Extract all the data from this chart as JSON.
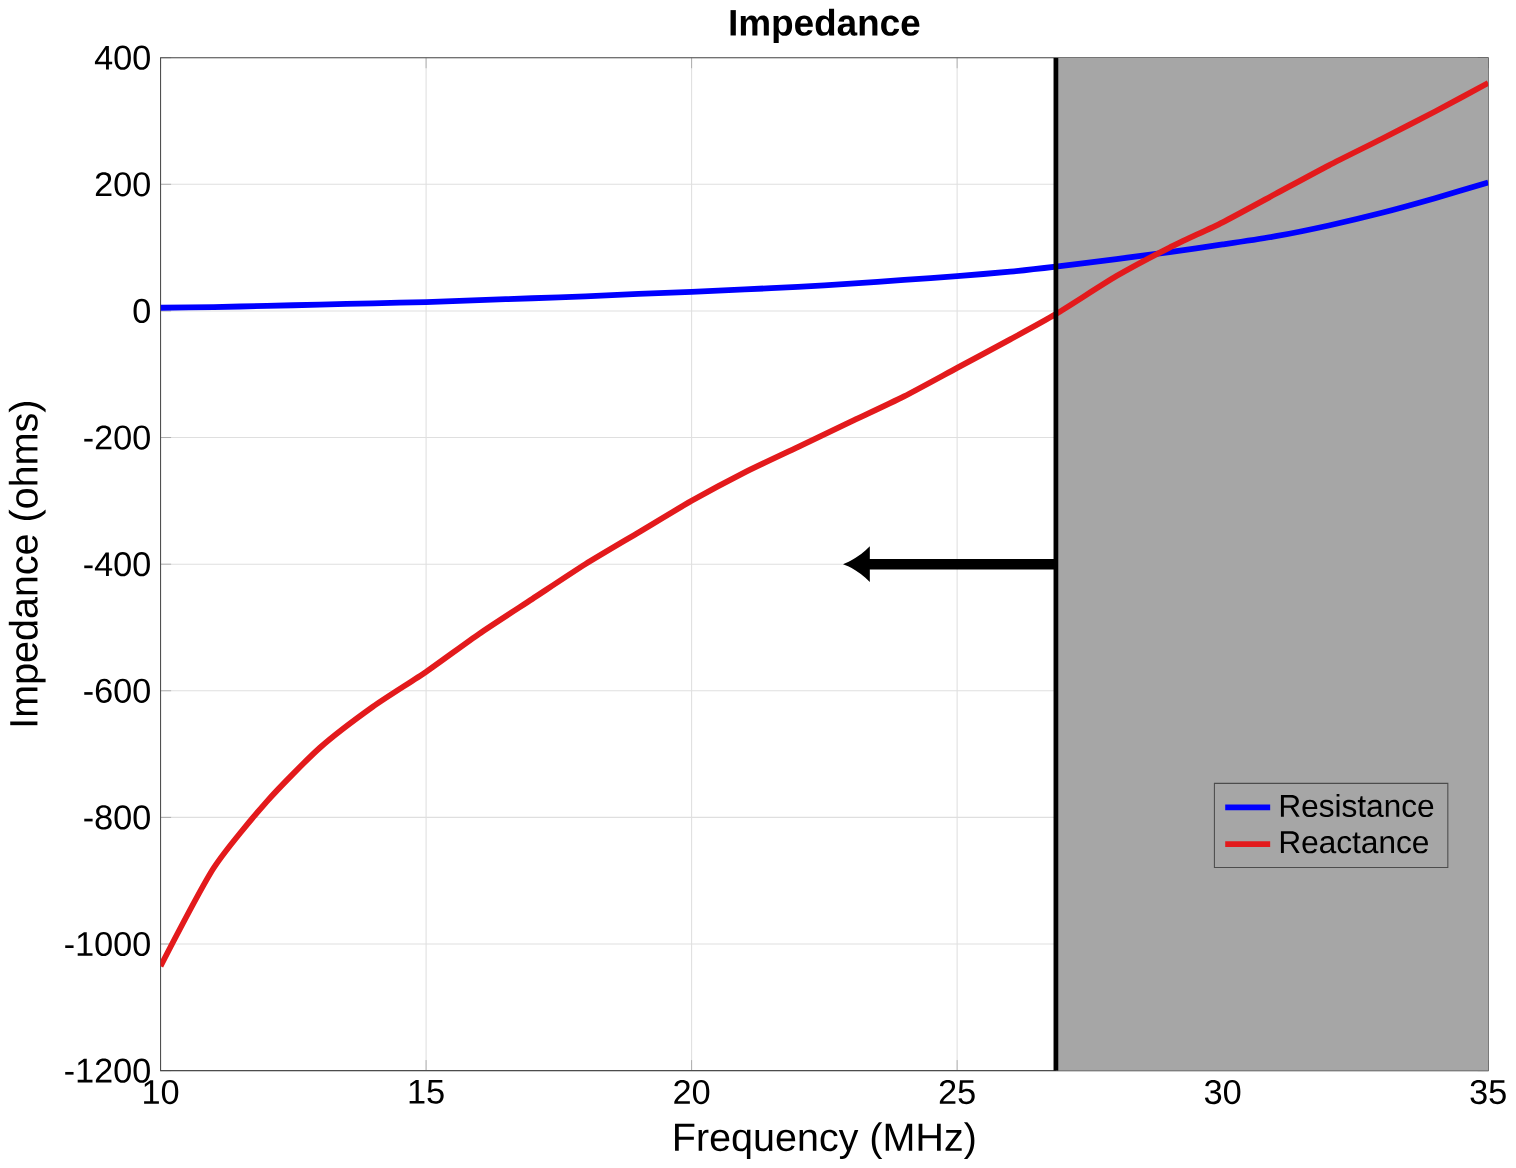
{
  "chart_data": {
    "type": "line",
    "title": "Impedance",
    "xlabel": "Frequency (MHz)",
    "ylabel": "Impedance (ohms)",
    "x": [
      10,
      11,
      12,
      13,
      14,
      15,
      16,
      17,
      18,
      19,
      20,
      21,
      22,
      23,
      24,
      25,
      26,
      26.86,
      28,
      29,
      30,
      31,
      32,
      33,
      34,
      35
    ],
    "series": [
      {
        "name": "Resistance",
        "color": "#0000ff",
        "values": [
          5,
          6,
          8,
          10,
          12,
          14,
          17,
          20,
          23,
          27,
          30,
          34,
          38,
          43,
          49,
          55,
          62,
          70,
          82,
          93,
          105,
          118,
          135,
          155,
          178,
          203
        ]
      },
      {
        "name": "Reactance",
        "color": "#e31a1c",
        "values": [
          -1035,
          -880,
          -775,
          -690,
          -625,
          -570,
          -510,
          -455,
          -400,
          -350,
          -300,
          -255,
          -215,
          -175,
          -135,
          -90,
          -45,
          -5,
          55,
          100,
          140,
          185,
          230,
          272,
          315,
          360
        ]
      }
    ],
    "xlim": [
      10,
      35
    ],
    "ylim": [
      -1200,
      400
    ],
    "xticks": [
      10,
      15,
      20,
      25,
      30,
      35
    ],
    "yticks": [
      -1200,
      -1000,
      -800,
      -600,
      -400,
      -200,
      0,
      200,
      400
    ],
    "ref_lines": [
      {
        "axis": "x",
        "value": 26.86,
        "color": "#000000"
      }
    ],
    "bands": [
      {
        "axis": "x",
        "from": 26.86,
        "to": 35,
        "color": "#a6a6a6"
      }
    ],
    "grid": true,
    "legend": "bottom right",
    "line_style": "solid",
    "marker": "none"
  }
}
